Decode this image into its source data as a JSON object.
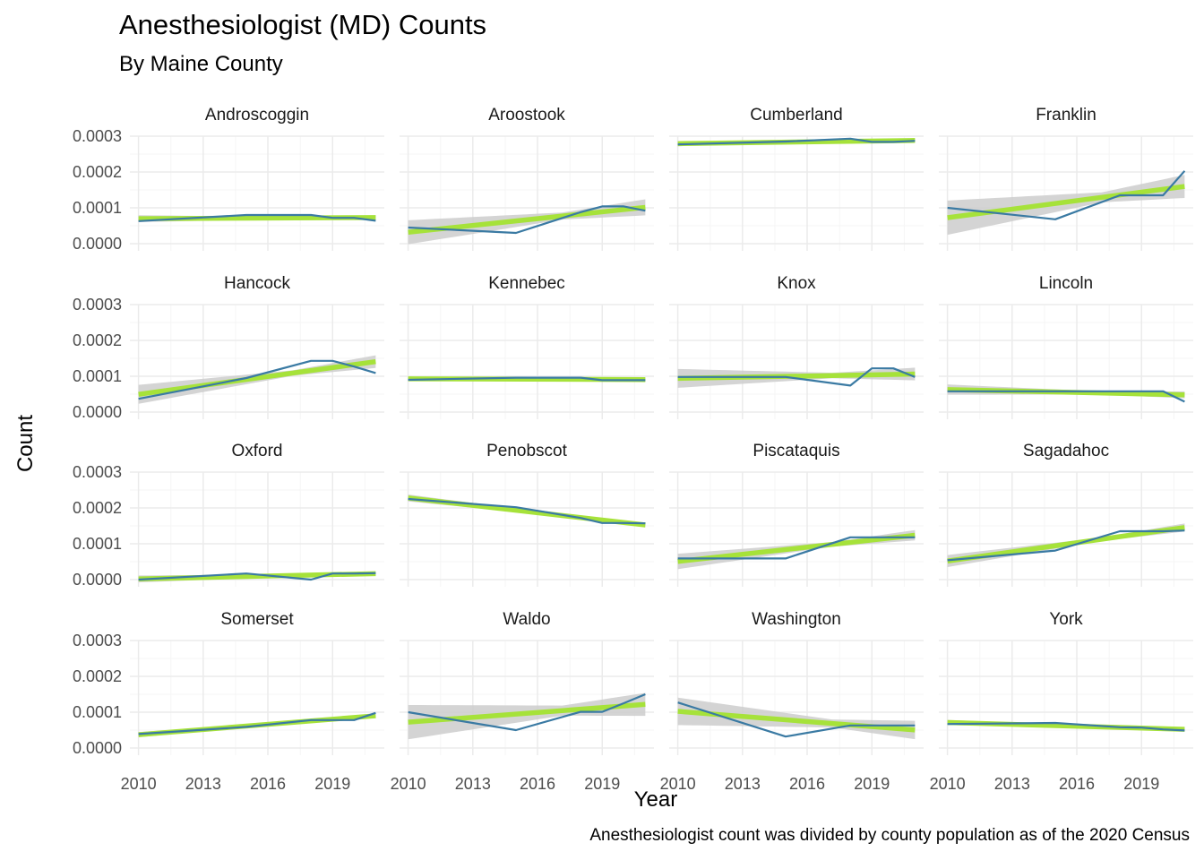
{
  "title": "Anesthesiologist (MD) Counts",
  "subtitle": "By Maine County",
  "caption": "Anesthesiologist count was divided by county population as of the 2020 Census",
  "colors": {
    "line": "#3a7aa3",
    "trend": "#a6e23a",
    "band": "#cccccc",
    "grid_major": "#ebebeb",
    "grid_minor": "#f5f5f5"
  },
  "chart_data": {
    "type": "line",
    "title": "Anesthesiologist (MD) Counts",
    "subtitle": "By Maine County",
    "xlabel": "Year",
    "ylabel": "Count",
    "xlim": [
      2009.6,
      2021.4
    ],
    "ylim": [
      -2e-05,
      0.0003
    ],
    "x_ticks": [
      "2010",
      "2013",
      "2016",
      "2019"
    ],
    "y_ticks": [
      "0.0000",
      "0.0001",
      "0.0002",
      "0.0003"
    ],
    "grid": true,
    "trend": "linear fit with confidence band",
    "facets": [
      {
        "name": "Androscoggin",
        "x": [
          2010,
          2015,
          2018,
          2019,
          2020,
          2021
        ],
        "y": [
          6.3e-05,
          8e-05,
          8e-05,
          7.2e-05,
          7.2e-05,
          6.4e-05
        ],
        "band": 8e-06
      },
      {
        "name": "Aroostook",
        "x": [
          2010,
          2015,
          2018,
          2019,
          2020,
          2021
        ],
        "y": [
          4.5e-05,
          3e-05,
          8.8e-05,
          0.000104,
          0.000104,
          9.2e-05
        ],
        "band": 2.8e-05
      },
      {
        "name": "Cumberland",
        "x": [
          2010,
          2015,
          2018,
          2019,
          2020,
          2021
        ],
        "y": [
          0.000277,
          0.000285,
          0.000293,
          0.000284,
          0.000284,
          0.000287
        ],
        "band": 6e-06
      },
      {
        "name": "Franklin",
        "x": [
          2010,
          2015,
          2018,
          2019,
          2020,
          2021
        ],
        "y": [
          0.0001,
          6.8e-05,
          0.000135,
          0.000135,
          0.000135,
          0.000203
        ],
        "band": 4e-05
      },
      {
        "name": "Hancock",
        "x": [
          2010,
          2015,
          2018,
          2019,
          2020,
          2021
        ],
        "y": [
          3.7e-05,
          9.5e-05,
          0.000143,
          0.000143,
          0.000127,
          0.000109
        ],
        "band": 2.2e-05
      },
      {
        "name": "Kennebec",
        "x": [
          2010,
          2015,
          2018,
          2019,
          2020,
          2021
        ],
        "y": [
          9e-05,
          9.6e-05,
          9.6e-05,
          8.9e-05,
          8.9e-05,
          8.9e-05
        ],
        "band": 5e-06
      },
      {
        "name": "Knox",
        "x": [
          2010,
          2015,
          2018,
          2019,
          2020,
          2021
        ],
        "y": [
          9.8e-05,
          9.8e-05,
          7.4e-05,
          0.000122,
          0.000122,
          9.8e-05
        ],
        "band": 2.2e-05
      },
      {
        "name": "Lincoln",
        "x": [
          2010,
          2015,
          2018,
          2019,
          2020,
          2021
        ],
        "y": [
          5.8e-05,
          5.8e-05,
          5.8e-05,
          5.8e-05,
          5.8e-05,
          2.9e-05
        ],
        "band": 1.2e-05
      },
      {
        "name": "Oxford",
        "x": [
          2010,
          2015,
          2018,
          2019,
          2020,
          2021
        ],
        "y": [
          0.0,
          1.7e-05,
          0.0,
          1.7e-05,
          1.7e-05,
          1.8e-05
        ],
        "band": 8e-06
      },
      {
        "name": "Penobscot",
        "x": [
          2010,
          2015,
          2018,
          2019,
          2020,
          2021
        ],
        "y": [
          0.000225,
          0.000202,
          0.000172,
          0.000158,
          0.000158,
          0.000157
        ],
        "band": 8e-06
      },
      {
        "name": "Piscataquis",
        "x": [
          2010,
          2015,
          2018,
          2019,
          2020,
          2021
        ],
        "y": [
          5.9e-05,
          5.9e-05,
          0.000118,
          0.000118,
          0.000118,
          0.000118
        ],
        "band": 1.8e-05
      },
      {
        "name": "Sagadahoc",
        "x": [
          2010,
          2015,
          2018,
          2019,
          2020,
          2021
        ],
        "y": [
          5.4e-05,
          8.1e-05,
          0.000135,
          0.000135,
          0.000135,
          0.000137
        ],
        "band": 1.4e-05
      },
      {
        "name": "Somerset",
        "x": [
          2010,
          2015,
          2018,
          2019,
          2020,
          2021
        ],
        "y": [
          3.9e-05,
          5.9e-05,
          7.8e-05,
          7.8e-05,
          7.8e-05,
          9.8e-05
        ],
        "band": 6e-06
      },
      {
        "name": "Waldo",
        "x": [
          2010,
          2015,
          2018,
          2019,
          2020,
          2021
        ],
        "y": [
          0.0001,
          5e-05,
          0.000101,
          0.000101,
          0.000125,
          0.00015
        ],
        "band": 4e-05
      },
      {
        "name": "Washington",
        "x": [
          2010,
          2015,
          2018,
          2019,
          2020,
          2021
        ],
        "y": [
          0.000127,
          3.2e-05,
          6.3e-05,
          6.3e-05,
          6.3e-05,
          6.3e-05
        ],
        "band": 3.2e-05
      },
      {
        "name": "York",
        "x": [
          2010,
          2015,
          2018,
          2019,
          2020,
          2021
        ],
        "y": [
          6.7e-05,
          7e-05,
          5.8e-05,
          5.7e-05,
          5.2e-05,
          4.9e-05
        ],
        "band": 6e-06
      }
    ]
  }
}
